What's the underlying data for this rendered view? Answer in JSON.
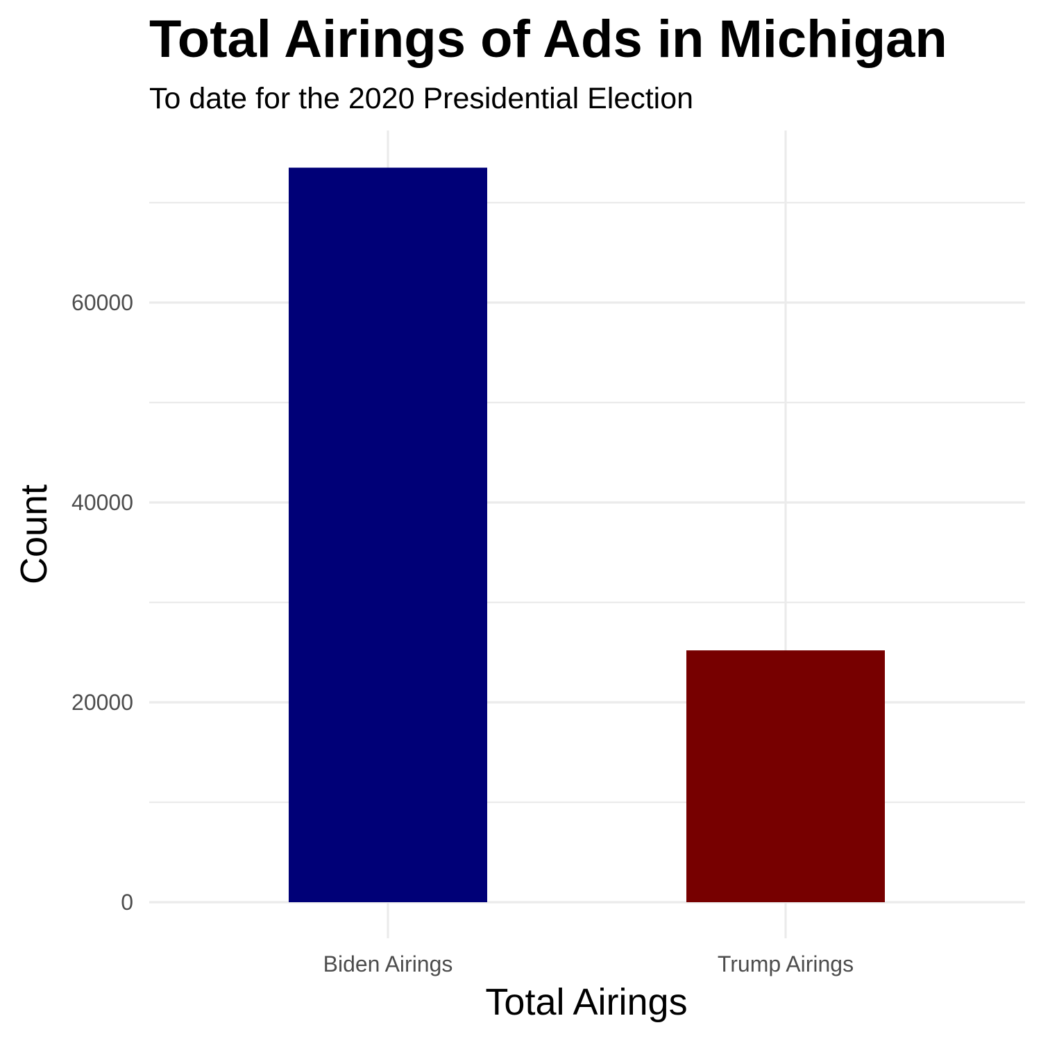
{
  "chart_data": {
    "type": "bar",
    "title": "Total Airings of Ads in Michigan",
    "subtitle": "To date for the 2020 Presidential Election",
    "xlabel": "Total Airings",
    "ylabel": "Count",
    "categories": [
      "Biden Airings",
      "Trump Airings"
    ],
    "values": [
      73500,
      25200
    ],
    "colors": [
      "#000077",
      "#770000"
    ],
    "ylim": [
      0,
      80000
    ],
    "yticks": [
      0,
      20000,
      40000,
      60000
    ],
    "ytick_labels": [
      "0",
      "20000",
      "40000",
      "60000"
    ],
    "grid": true,
    "legend": "none"
  }
}
